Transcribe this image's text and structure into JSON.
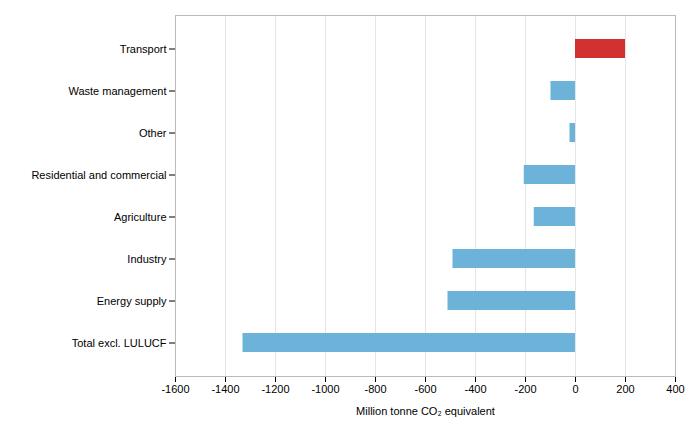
{
  "chart_data": {
    "type": "bar",
    "orientation": "horizontal",
    "categories": [
      "Total excl. LULUCF",
      "Energy supply",
      "Industry",
      "Agriculture",
      "Residential and commercial",
      "Other",
      "Waste management",
      "Transport"
    ],
    "values": [
      -1330,
      -510,
      -490,
      -165,
      -205,
      -22,
      -98,
      200
    ],
    "colors": [
      "#6db3d9",
      "#6db3d9",
      "#6db3d9",
      "#6db3d9",
      "#6db3d9",
      "#6db3d9",
      "#6db3d9",
      "#d03030"
    ],
    "xlabel": "Million tonne CO₂ equivalent",
    "xlim": [
      -1600,
      400
    ],
    "xticks": [
      -1600,
      -1400,
      -1200,
      -1000,
      -800,
      -600,
      -400,
      -200,
      0,
      200,
      400
    ],
    "grid": true
  }
}
